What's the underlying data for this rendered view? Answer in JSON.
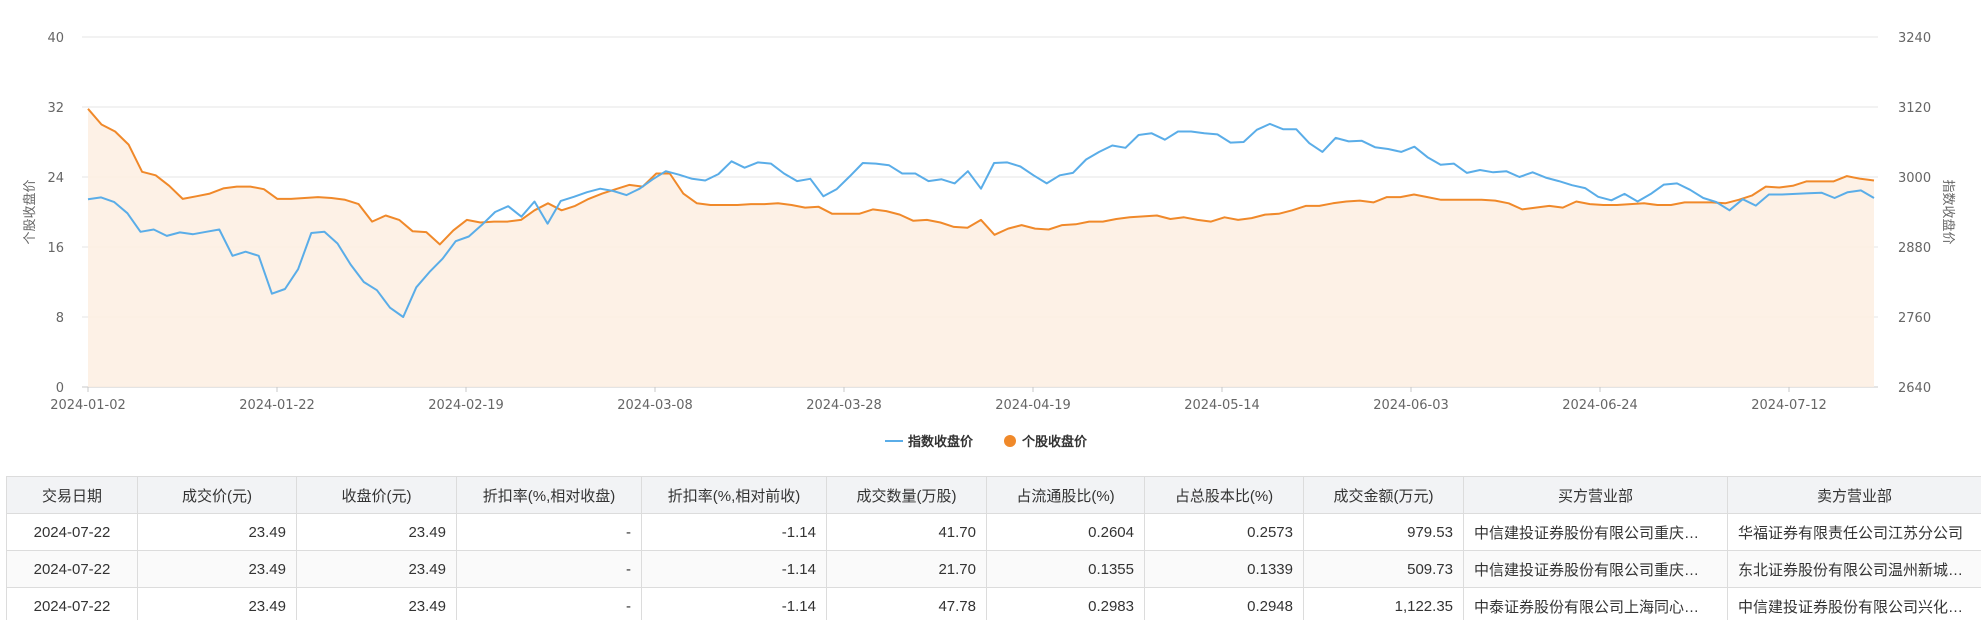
{
  "chart_data": {
    "type": "line",
    "title": "",
    "legend_position": "bottom-center",
    "grid": true,
    "x_axis": {
      "tick_labels": [
        "2024-01-02",
        "2024-01-22",
        "2024-02-19",
        "2024-03-08",
        "2024-03-28",
        "2024-04-19",
        "2024-05-14",
        "2024-06-03",
        "2024-06-24",
        "2024-07-12"
      ]
    },
    "y_left": {
      "label": "个股收盘价",
      "range": [
        0,
        40
      ],
      "ticks": [
        0,
        8,
        16,
        24,
        32,
        40
      ]
    },
    "y_right": {
      "label": "指数收盘价",
      "range": [
        2640,
        3240
      ],
      "ticks": [
        2640,
        2760,
        2880,
        3000,
        3120,
        3240
      ]
    },
    "series": [
      {
        "name": "指数收盘价",
        "axis": "right",
        "color": "#5aade8",
        "values": [
          2962,
          2965,
          2957,
          2938,
          2906,
          2910,
          2899,
          2905,
          2902,
          2906,
          2910,
          2865,
          2872,
          2865,
          2800,
          2808,
          2842,
          2904,
          2906,
          2886,
          2850,
          2820,
          2806,
          2776,
          2760,
          2811,
          2837,
          2860,
          2890,
          2898,
          2918,
          2940,
          2950,
          2932,
          2958,
          2920,
          2959,
          2966,
          2974,
          2980,
          2976,
          2969,
          2980,
          2996,
          3010,
          3004,
          2997,
          2994,
          3005,
          3027,
          3016,
          3025,
          3023,
          3006,
          2993,
          2997,
          2967,
          2979,
          3001,
          3024,
          3023,
          3020,
          3006,
          3006,
          2993,
          2996,
          2989,
          3010,
          2980,
          3024,
          3025,
          3018,
          3003,
          2989,
          3003,
          3007,
          3030,
          3043,
          3054,
          3050,
          3072,
          3075,
          3064,
          3078,
          3078,
          3075,
          3073,
          3059,
          3060,
          3081,
          3091,
          3082,
          3082,
          3058,
          3043,
          3067,
          3061,
          3062,
          3051,
          3048,
          3043,
          3052,
          3034,
          3021,
          3023,
          3007,
          3012,
          3008,
          3010,
          3000,
          3008,
          2999,
          2993,
          2986,
          2981,
          2966,
          2960,
          2971,
          2958,
          2971,
          2987,
          2989,
          2978,
          2964,
          2957,
          2943,
          2962,
          2951,
          2970,
          2970,
          2971,
          2972,
          2973,
          2964,
          2974,
          2977,
          2964
        ]
      },
      {
        "name": "个股收盘价",
        "axis": "left",
        "color": "#f0892a",
        "values": [
          31.8,
          30.0,
          29.2,
          27.7,
          24.6,
          24.2,
          23.0,
          21.5,
          21.8,
          22.1,
          22.7,
          22.9,
          22.9,
          22.6,
          21.5,
          21.5,
          21.6,
          21.7,
          21.6,
          21.4,
          20.9,
          18.9,
          19.6,
          19.1,
          17.8,
          17.7,
          16.3,
          17.9,
          19.1,
          18.8,
          18.9,
          18.9,
          19.1,
          20.2,
          21.0,
          20.2,
          20.7,
          21.5,
          22.1,
          22.6,
          23.1,
          22.9,
          24.4,
          24.4,
          22.1,
          21.0,
          20.8,
          20.8,
          20.8,
          20.9,
          20.9,
          21.0,
          20.8,
          20.5,
          20.6,
          19.8,
          19.8,
          19.8,
          20.3,
          20.1,
          19.7,
          19.0,
          19.1,
          18.8,
          18.3,
          18.2,
          19.1,
          17.4,
          18.1,
          18.5,
          18.1,
          18.0,
          18.5,
          18.6,
          18.9,
          18.9,
          19.2,
          19.4,
          19.5,
          19.6,
          19.2,
          19.4,
          19.1,
          18.9,
          19.4,
          19.1,
          19.3,
          19.7,
          19.8,
          20.2,
          20.7,
          20.7,
          21.0,
          21.2,
          21.3,
          21.1,
          21.7,
          21.7,
          22.0,
          21.7,
          21.4,
          21.4,
          21.4,
          21.4,
          21.3,
          21.0,
          20.3,
          20.5,
          20.7,
          20.5,
          21.2,
          20.9,
          20.8,
          20.8,
          20.9,
          21.0,
          20.8,
          20.8,
          21.1,
          21.1,
          21.1,
          21.0,
          21.4,
          21.9,
          22.9,
          22.8,
          23.0,
          23.5,
          23.5,
          23.5,
          24.1,
          23.8,
          23.6
        ]
      }
    ]
  },
  "legend": {
    "index_label": "指数收盘价",
    "stock_label": "个股收盘价"
  },
  "table": {
    "headers": [
      "交易日期",
      "成交价(元)",
      "收盘价(元)",
      "折扣率(%,相对收盘)",
      "折扣率(%,相对前收)",
      "成交数量(万股)",
      "占流通股比(%)",
      "占总股本比(%)",
      "成交金额(万元)",
      "买方营业部",
      "卖方营业部"
    ],
    "rows": [
      [
        "2024-07-22",
        "23.49",
        "23.49",
        "-",
        "-1.14",
        "41.70",
        "0.2604",
        "0.2573",
        "979.53",
        "中信建投证券股份有限公司重庆…",
        "华福证券有限责任公司江苏分公司"
      ],
      [
        "2024-07-22",
        "23.49",
        "23.49",
        "-",
        "-1.14",
        "21.70",
        "0.1355",
        "0.1339",
        "509.73",
        "中信建投证券股份有限公司重庆…",
        "东北证券股份有限公司温州新城…"
      ],
      [
        "2024-07-22",
        "23.49",
        "23.49",
        "-",
        "-1.14",
        "47.78",
        "0.2983",
        "0.2948",
        "1,122.35",
        "中泰证券股份有限公司上海同心…",
        "中信建投证券股份有限公司兴化…"
      ]
    ]
  }
}
